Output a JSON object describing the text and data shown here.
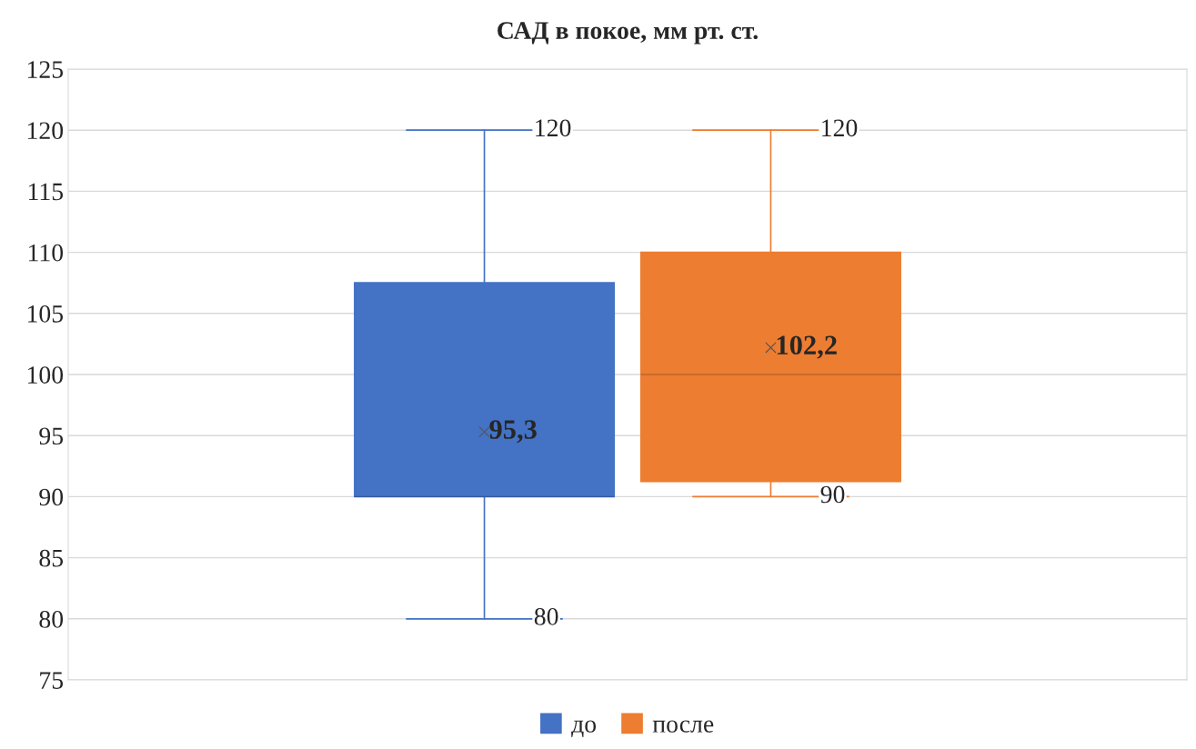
{
  "chart_data": {
    "type": "box",
    "title": "САД в покое, мм рт. ст.",
    "categories": [
      null
    ],
    "series": [
      {
        "name": "до",
        "color": "#4472c4",
        "boxes": [
          {
            "low": 80,
            "q1": 90,
            "median": 90,
            "q3": 107.5,
            "high": 120,
            "mean": 95.3
          }
        ]
      },
      {
        "name": "после",
        "color": "#ed7d31",
        "boxes": [
          {
            "low": 90,
            "q1": 91.25,
            "median": 100,
            "q3": 110,
            "high": 120,
            "mean": 102.2
          }
        ]
      }
    ],
    "annotations": [
      {
        "text": "120",
        "y": 120
      },
      {
        "text": "80",
        "y": 80
      },
      "95,3",
      {
        "text": "120",
        "y": 120
      },
      {
        "text": "90",
        "y": 90
      },
      "102,2"
    ],
    "ylim": [
      75,
      125
    ],
    "yticks": [
      75,
      80,
      85,
      90,
      95,
      100,
      105,
      110,
      115,
      120,
      125
    ],
    "grid": "y",
    "legend": "bottom",
    "tick_labels": "y",
    "data_labels": true
  }
}
